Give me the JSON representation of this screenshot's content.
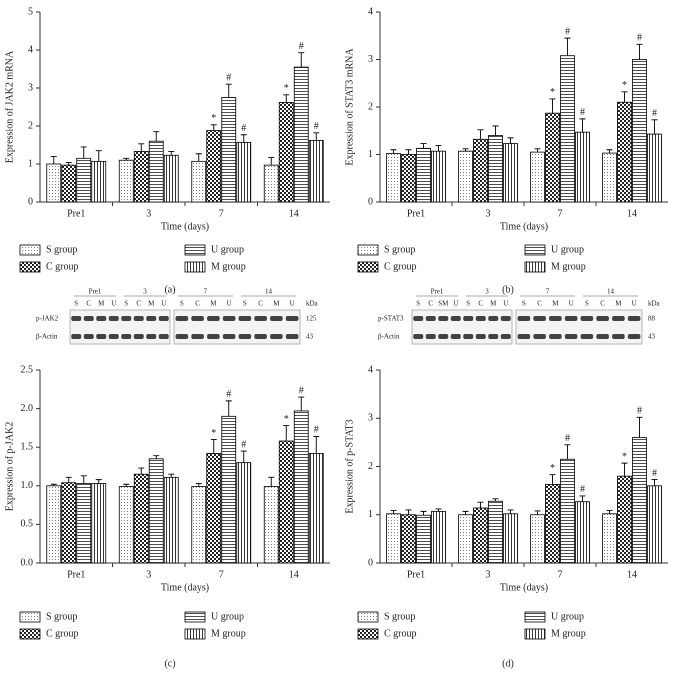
{
  "chart_data": [
    {
      "type": "bar",
      "ylabel": "Expression of JAK2 mRNA",
      "xlabel": "Time (days)",
      "panel_label": "(a)",
      "categories": [
        "Pre1",
        "3",
        "7",
        "14"
      ],
      "ylim": [
        0,
        5
      ],
      "yticks": [
        0,
        1,
        2,
        3,
        4,
        5
      ],
      "series": [
        {
          "name": "S group",
          "color": "#000000",
          "pattern": "dots",
          "values": [
            1.0,
            1.1,
            1.07,
            0.97
          ],
          "errors": [
            0.2,
            0.05,
            0.2,
            0.2
          ],
          "annotations": [
            null,
            null,
            null,
            null
          ]
        },
        {
          "name": "C group",
          "color": "#000000",
          "pattern": "checker",
          "values": [
            0.97,
            1.33,
            1.88,
            2.62
          ],
          "errors": [
            0.07,
            0.2,
            0.15,
            0.2
          ],
          "annotations": [
            null,
            null,
            "*",
            "*"
          ]
        },
        {
          "name": "U group",
          "color": "#000000",
          "pattern": "hlines",
          "values": [
            1.15,
            1.6,
            2.75,
            3.55
          ],
          "errors": [
            0.3,
            0.25,
            0.35,
            0.38
          ],
          "annotations": [
            null,
            null,
            "#",
            "#"
          ]
        },
        {
          "name": "M group",
          "color": "#000000",
          "pattern": "vlines",
          "values": [
            1.07,
            1.23,
            1.57,
            1.62
          ],
          "errors": [
            0.28,
            0.1,
            0.2,
            0.2
          ],
          "annotations": [
            null,
            null,
            "#",
            "#"
          ]
        }
      ]
    },
    {
      "type": "bar",
      "ylabel": "Expression of STAT3 mRNA",
      "xlabel": "Time (days)",
      "panel_label": "(b)",
      "categories": [
        "Pre1",
        "3",
        "7",
        "14"
      ],
      "ylim": [
        0,
        4
      ],
      "yticks": [
        0,
        1,
        2,
        3,
        4
      ],
      "series": [
        {
          "name": "S group",
          "color": "#000000",
          "pattern": "dots",
          "values": [
            1.02,
            1.07,
            1.05,
            1.03
          ],
          "errors": [
            0.08,
            0.05,
            0.07,
            0.07
          ],
          "annotations": [
            null,
            null,
            null,
            null
          ]
        },
        {
          "name": "C group",
          "color": "#000000",
          "pattern": "checker",
          "values": [
            1.0,
            1.32,
            1.87,
            2.1
          ],
          "errors": [
            0.1,
            0.2,
            0.3,
            0.22
          ],
          "annotations": [
            null,
            null,
            "*",
            "*"
          ]
        },
        {
          "name": "U group",
          "color": "#000000",
          "pattern": "hlines",
          "values": [
            1.13,
            1.4,
            3.08,
            3.0
          ],
          "errors": [
            0.1,
            0.2,
            0.37,
            0.32
          ],
          "annotations": [
            null,
            null,
            "#",
            "#"
          ]
        },
        {
          "name": "M group",
          "color": "#000000",
          "pattern": "vlines",
          "values": [
            1.07,
            1.23,
            1.47,
            1.43
          ],
          "errors": [
            0.12,
            0.12,
            0.28,
            0.3
          ],
          "annotations": [
            null,
            null,
            "#",
            "#"
          ]
        }
      ]
    },
    {
      "type": "bar",
      "ylabel": "Expression of p-JAK2",
      "xlabel": "Time (days)",
      "panel_label": "(c)",
      "categories": [
        "Pre1",
        "3",
        "7",
        "14"
      ],
      "ylim": [
        0,
        2.5
      ],
      "yticks": [
        {
          "value": 0,
          "label": "0.0"
        },
        0.5,
        {
          "value": 1,
          "label": "1.0"
        },
        1.5,
        {
          "value": 2,
          "label": "2.0"
        },
        2.5
      ],
      "series": [
        {
          "name": "S group",
          "color": "#000000",
          "pattern": "dots",
          "values": [
            1.0,
            0.99,
            0.99,
            0.99
          ],
          "errors": [
            0.02,
            0.03,
            0.04,
            0.12
          ],
          "annotations": [
            null,
            null,
            null,
            null
          ]
        },
        {
          "name": "C group",
          "color": "#000000",
          "pattern": "checker",
          "values": [
            1.04,
            1.15,
            1.42,
            1.58
          ],
          "errors": [
            0.07,
            0.08,
            0.18,
            0.2
          ],
          "annotations": [
            null,
            null,
            "*",
            "*"
          ]
        },
        {
          "name": "U group",
          "color": "#000000",
          "pattern": "hlines",
          "values": [
            1.03,
            1.35,
            1.9,
            1.97
          ],
          "errors": [
            0.1,
            0.04,
            0.2,
            0.18
          ],
          "annotations": [
            null,
            null,
            "#",
            "#"
          ]
        },
        {
          "name": "M group",
          "color": "#000000",
          "pattern": "vlines",
          "values": [
            1.03,
            1.11,
            1.3,
            1.42
          ],
          "errors": [
            0.05,
            0.04,
            0.15,
            0.22
          ],
          "annotations": [
            null,
            null,
            "#",
            "#"
          ]
        }
      ]
    },
    {
      "type": "bar",
      "ylabel": "Expression of p-STAT3",
      "xlabel": "Time (days)",
      "panel_label": "(d)",
      "categories": [
        "Pre1",
        "3",
        "7",
        "14"
      ],
      "ylim": [
        0,
        4
      ],
      "yticks": [
        0,
        1,
        2,
        3,
        4
      ],
      "series": [
        {
          "name": "S group",
          "color": "#000000",
          "pattern": "dots",
          "values": [
            1.02,
            1.0,
            1.0,
            1.02
          ],
          "errors": [
            0.07,
            0.07,
            0.08,
            0.07
          ],
          "annotations": [
            null,
            null,
            null,
            null
          ]
        },
        {
          "name": "C group",
          "color": "#000000",
          "pattern": "checker",
          "values": [
            1.0,
            1.14,
            1.63,
            1.8
          ],
          "errors": [
            0.1,
            0.12,
            0.2,
            0.27
          ],
          "annotations": [
            null,
            null,
            "*",
            "*"
          ]
        },
        {
          "name": "U group",
          "color": "#000000",
          "pattern": "hlines",
          "values": [
            0.99,
            1.28,
            2.15,
            2.6
          ],
          "errors": [
            0.08,
            0.05,
            0.3,
            0.42
          ],
          "annotations": [
            null,
            null,
            "#",
            "#"
          ]
        },
        {
          "name": "M group",
          "color": "#000000",
          "pattern": "vlines",
          "values": [
            1.07,
            1.02,
            1.27,
            1.6
          ],
          "errors": [
            0.05,
            0.08,
            0.12,
            0.13
          ],
          "annotations": [
            null,
            null,
            "#",
            "#"
          ]
        }
      ]
    }
  ],
  "blots": [
    {
      "groups": [
        "Pre1",
        "3",
        "7",
        "14"
      ],
      "lanes": [
        [
          "S",
          "C",
          "M",
          "U"
        ],
        [
          "S",
          "C",
          "M",
          "U"
        ],
        [
          "S",
          "C",
          "M",
          "U"
        ],
        [
          "S",
          "C",
          "M",
          "U"
        ]
      ],
      "rows": [
        "p-JAK2",
        "β-Actin"
      ],
      "unit": "kDa",
      "weights": [
        125,
        43
      ]
    },
    {
      "groups": [
        "Pre1",
        "3",
        "7",
        "14"
      ],
      "lanes": [
        [
          "S",
          "C",
          "SM",
          "U"
        ],
        [
          "S",
          "C",
          "M",
          "U"
        ],
        [
          "S",
          "C",
          "M",
          "U"
        ],
        [
          "S",
          "C",
          "M",
          "U"
        ]
      ],
      "rows": [
        "p-STAT3",
        "β-Actin"
      ],
      "unit": "kDa",
      "weights": [
        88,
        43
      ]
    }
  ]
}
